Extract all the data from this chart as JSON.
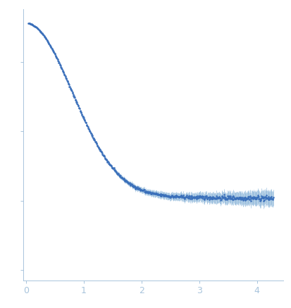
{
  "title": "",
  "xlabel": "",
  "ylabel": "",
  "xlim": [
    -0.05,
    4.45
  ],
  "dot_color": "#3a6fba",
  "error_color": "#8ab4d8",
  "background_color": "#ffffff",
  "spine_color": "#a8c4dc",
  "tick_color": "#a8c4dc",
  "label_color": "#a8c4dc",
  "x_ticks": [
    0,
    1,
    2,
    3,
    4
  ],
  "n_points": 600,
  "seed": 42
}
